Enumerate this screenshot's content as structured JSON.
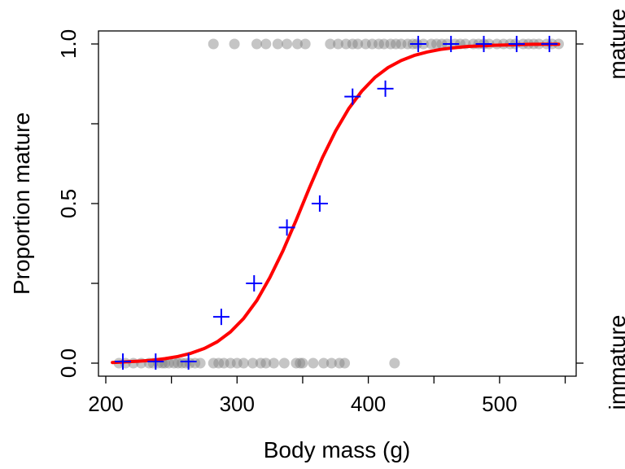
{
  "chart_data": {
    "type": "scatter",
    "title": "",
    "xlabel": "Body mass (g)",
    "ylabel": "Proportion mature",
    "xlim": [
      200,
      550
    ],
    "ylim": [
      0,
      1
    ],
    "x_ticks": [
      200,
      300,
      400,
      500
    ],
    "y_ticks": [
      0.0,
      0.5,
      1.0
    ],
    "x_tick_labels": [
      "200",
      "300",
      "400",
      "500"
    ],
    "y_tick_labels": [
      "0.0",
      "0.5",
      "1.0"
    ],
    "right_axis_labels": [
      "immature",
      "mature"
    ],
    "grid": false,
    "colors": {
      "observations": "#7f7f7f",
      "binned_proportions": "#0000ff",
      "fitted_curve": "#ff0000"
    },
    "observations": {
      "marker": "circle",
      "y0_x": [
        210,
        215,
        221,
        227,
        233,
        236,
        240,
        243,
        245,
        248,
        252,
        255,
        258,
        261,
        264,
        268,
        272,
        282,
        286,
        290,
        295,
        300,
        305,
        312,
        318,
        322,
        328,
        336,
        345,
        348,
        350,
        358,
        366,
        372,
        378,
        382,
        420
      ],
      "y1_x": [
        282,
        298,
        315,
        322,
        331,
        338,
        346,
        352,
        371,
        377,
        383,
        388,
        392,
        398,
        403,
        408,
        412,
        417,
        421,
        425,
        430,
        434,
        437,
        442,
        448,
        452,
        456,
        460,
        466,
        470,
        474,
        480,
        484,
        488,
        492,
        498,
        503,
        508,
        512,
        518,
        522,
        526,
        530,
        536,
        540,
        545
      ]
    },
    "binned_proportions": {
      "marker": "plus",
      "x": [
        213,
        238,
        263,
        288,
        313,
        338,
        363,
        388,
        413,
        438,
        463,
        488,
        513,
        538
      ],
      "y": [
        0.005,
        0.005,
        0.005,
        0.145,
        0.25,
        0.425,
        0.5,
        0.835,
        0.86,
        1.0,
        1.0,
        1.0,
        1.0,
        1.0
      ]
    },
    "fitted_curve": {
      "x": [
        205,
        215,
        225,
        235,
        245,
        255,
        265,
        275,
        285,
        295,
        305,
        315,
        325,
        335,
        345,
        355,
        365,
        375,
        385,
        395,
        405,
        415,
        425,
        435,
        445,
        455,
        465,
        475,
        485,
        495,
        505,
        515,
        525,
        535,
        545
      ],
      "y": [
        0.002,
        0.004,
        0.006,
        0.009,
        0.014,
        0.021,
        0.031,
        0.046,
        0.067,
        0.098,
        0.14,
        0.196,
        0.268,
        0.352,
        0.448,
        0.548,
        0.643,
        0.727,
        0.797,
        0.852,
        0.895,
        0.926,
        0.948,
        0.964,
        0.975,
        0.983,
        0.988,
        0.992,
        0.994,
        0.996,
        0.997,
        0.998,
        0.999,
        0.999,
        0.999
      ]
    }
  }
}
